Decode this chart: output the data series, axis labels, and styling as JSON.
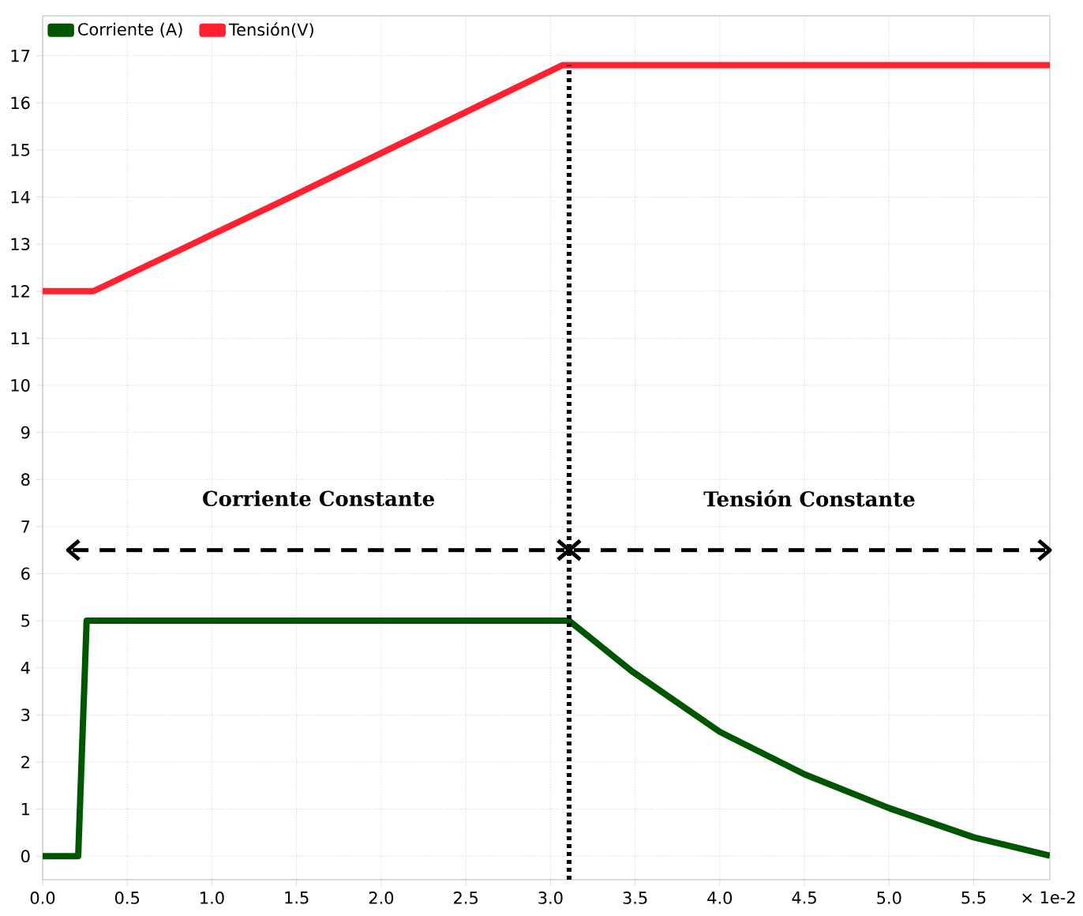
{
  "chart_data": {
    "type": "line",
    "xlim": [
      0,
      5.95
    ],
    "ylim": [
      -0.5,
      17.85
    ],
    "xticks": [
      {
        "value": 0,
        "label": "0.0"
      },
      {
        "value": 0.5,
        "label": "0.5"
      },
      {
        "value": 1,
        "label": "1.0"
      },
      {
        "value": 1.5,
        "label": "1.5"
      },
      {
        "value": 2,
        "label": "2.0"
      },
      {
        "value": 2.5,
        "label": "2.5"
      },
      {
        "value": 3,
        "label": "3.0"
      },
      {
        "value": 3.5,
        "label": "3.5"
      },
      {
        "value": 4,
        "label": "4.0"
      },
      {
        "value": 4.5,
        "label": "4.5"
      },
      {
        "value": 5,
        "label": "5.0"
      },
      {
        "value": 5.5,
        "label": "5.5"
      }
    ],
    "yticks": [
      0,
      1,
      2,
      3,
      4,
      5,
      6,
      7,
      8,
      9,
      10,
      11,
      12,
      13,
      14,
      15,
      16,
      17
    ],
    "grid": true,
    "legend": "top left",
    "marker": "none",
    "line_style": "solid",
    "series": [
      {
        "name": "Corriente (A)",
        "color": "#005500",
        "x": [
          0,
          0.21,
          0.26,
          1.0,
          2.0,
          3.11,
          3.48,
          4.0,
          4.5,
          5.0,
          5.5,
          5.95
        ],
        "values": [
          0,
          0,
          5.0,
          5.0,
          5.0,
          5.0,
          3.93,
          2.64,
          1.74,
          1.02,
          0.4,
          0.01
        ]
      },
      {
        "name": "Tensión(V)",
        "color": "#ff2030",
        "x": [
          0,
          0.3,
          1.5,
          3.07,
          4.0,
          5.0,
          5.95
        ],
        "values": [
          12,
          12,
          14.06,
          16.8,
          16.8,
          16.8,
          16.8
        ]
      }
    ],
    "ref_lines": [
      {
        "axis": "x",
        "value": 3.11,
        "color": "#000000",
        "line_style": "dotted"
      }
    ],
    "annotations": [
      "Corriente Constante",
      "Tensión Constante"
    ],
    "xlabel": "× 1e-2"
  }
}
